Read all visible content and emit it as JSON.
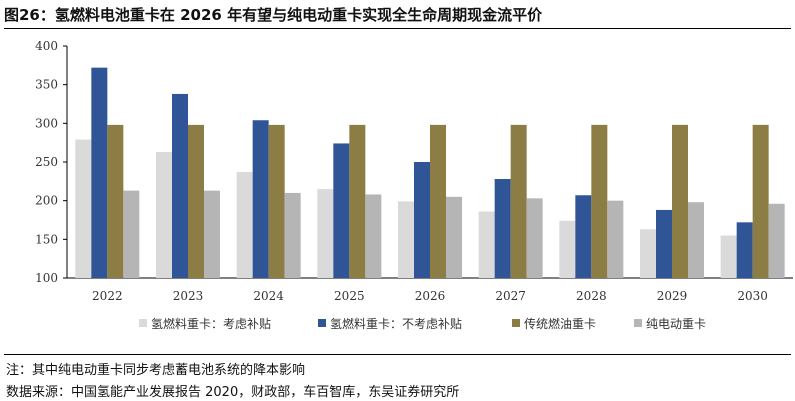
{
  "header": {
    "title": "图26：氢燃料电池重卡在 2026 年有望与纯电动重卡实现全生命周期现金流平价"
  },
  "footer": {
    "note": "注：其中纯电动重卡同步考虑蓄电池系统的降本影响",
    "source": "数据来源：中国氢能产业发展报告 2020，财政部，车百智库，东吴证券研究所"
  },
  "chart_data": {
    "type": "bar",
    "title": "",
    "xlabel": "",
    "ylabel": "",
    "categories": [
      "2022",
      "2023",
      "2024",
      "2025",
      "2026",
      "2027",
      "2028",
      "2029",
      "2030"
    ],
    "ylim": [
      100,
      400
    ],
    "yticks": [
      100,
      150,
      200,
      250,
      300,
      350,
      400
    ],
    "grid": false,
    "legend_position": "bottom",
    "series": [
      {
        "name": "氢燃料重卡：考虑补贴",
        "color": "#dadada",
        "values": [
          279,
          263,
          237,
          215,
          199,
          186,
          174,
          163,
          155
        ]
      },
      {
        "name": "氢燃料重卡：不考虑补贴",
        "color": "#2f5597",
        "values": [
          372,
          338,
          304,
          274,
          250,
          228,
          207,
          188,
          172
        ]
      },
      {
        "name": "传统燃油重卡",
        "color": "#8c7d44",
        "values": [
          298,
          298,
          298,
          298,
          298,
          298,
          298,
          298,
          298
        ]
      },
      {
        "name": "纯电动重卡",
        "color": "#b5b5b5",
        "values": [
          213,
          213,
          210,
          208,
          205,
          203,
          200,
          198,
          196
        ]
      }
    ]
  }
}
